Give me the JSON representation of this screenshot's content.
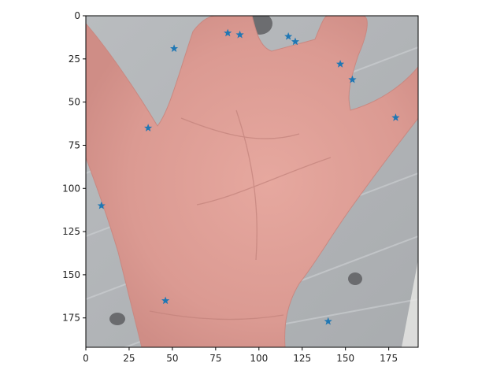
{
  "chart_data": {
    "type": "scatter",
    "title": "",
    "xlabel": "",
    "ylabel": "",
    "xlim": [
      0,
      192
    ],
    "ylim": [
      192,
      0
    ],
    "y_inverted": true,
    "background_image": "palm-of-hand-photo",
    "grid": false,
    "marker": "star",
    "marker_color": "#1f77b4",
    "x_ticks": [
      0,
      25,
      50,
      75,
      100,
      125,
      150,
      175
    ],
    "y_ticks": [
      0,
      25,
      50,
      75,
      100,
      125,
      150,
      175
    ],
    "series": [
      {
        "points": [
          {
            "x": 9,
            "y": 110
          },
          {
            "x": 36,
            "y": 65
          },
          {
            "x": 51,
            "y": 19
          },
          {
            "x": 82,
            "y": 10
          },
          {
            "x": 89,
            "y": 11
          },
          {
            "x": 117,
            "y": 12
          },
          {
            "x": 121,
            "y": 15
          },
          {
            "x": 147,
            "y": 28
          },
          {
            "x": 154,
            "y": 37
          },
          {
            "x": 179,
            "y": 59
          },
          {
            "x": 46,
            "y": 165
          },
          {
            "x": 140,
            "y": 177
          }
        ]
      }
    ]
  }
}
